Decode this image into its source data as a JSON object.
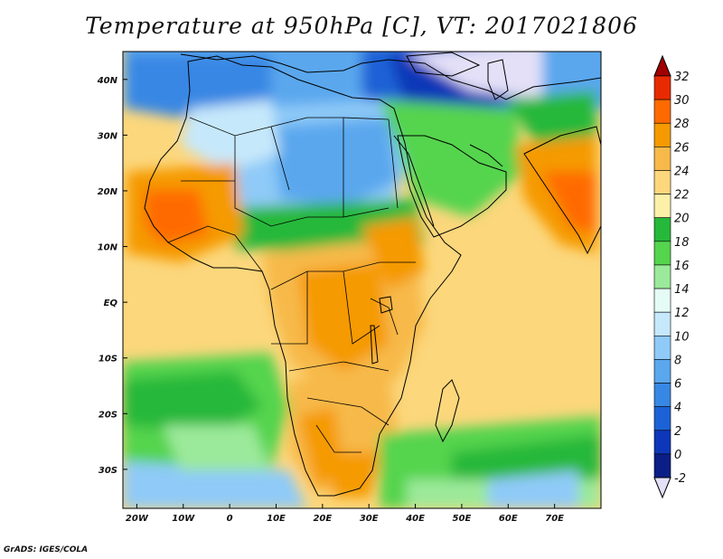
{
  "title": "Temperature at 950hPa [C], VT: 2017021806",
  "credit": "GrADS: IGES/COLA",
  "map": {
    "lon_range": [
      -23,
      80
    ],
    "lat_range": [
      -37,
      45
    ],
    "lon_ticks": [
      {
        "value": -20,
        "label": "20W"
      },
      {
        "value": -10,
        "label": "10W"
      },
      {
        "value": 0,
        "label": "0"
      },
      {
        "value": 10,
        "label": "10E"
      },
      {
        "value": 20,
        "label": "20E"
      },
      {
        "value": 30,
        "label": "30E"
      },
      {
        "value": 40,
        "label": "40E"
      },
      {
        "value": 50,
        "label": "50E"
      },
      {
        "value": 60,
        "label": "60E"
      },
      {
        "value": 70,
        "label": "70E"
      }
    ],
    "lat_ticks": [
      {
        "value": 40,
        "label": "40N"
      },
      {
        "value": 30,
        "label": "30N"
      },
      {
        "value": 20,
        "label": "20N"
      },
      {
        "value": 10,
        "label": "10N"
      },
      {
        "value": 0,
        "label": "EQ"
      },
      {
        "value": -10,
        "label": "10S"
      },
      {
        "value": -20,
        "label": "20S"
      },
      {
        "value": -30,
        "label": "30S"
      }
    ]
  },
  "colorbar": {
    "labels": [
      "32",
      "30",
      "28",
      "26",
      "24",
      "22",
      "20",
      "18",
      "16",
      "14",
      "12",
      "10",
      "8",
      "6",
      "4",
      "2",
      "0",
      "-2"
    ],
    "colors": [
      "#a20000",
      "#e82a00",
      "#ff6a00",
      "#f59a00",
      "#f7b94a",
      "#fcd77c",
      "#fdf0a8",
      "#26b83a",
      "#55d44d",
      "#9be99a",
      "#e5fbf5",
      "#c6e8fb",
      "#8fcaf8",
      "#5aa7ee",
      "#3787e4",
      "#1c62d6",
      "#0d37b8",
      "#0a1e85",
      "#e4e0f8"
    ]
  }
}
